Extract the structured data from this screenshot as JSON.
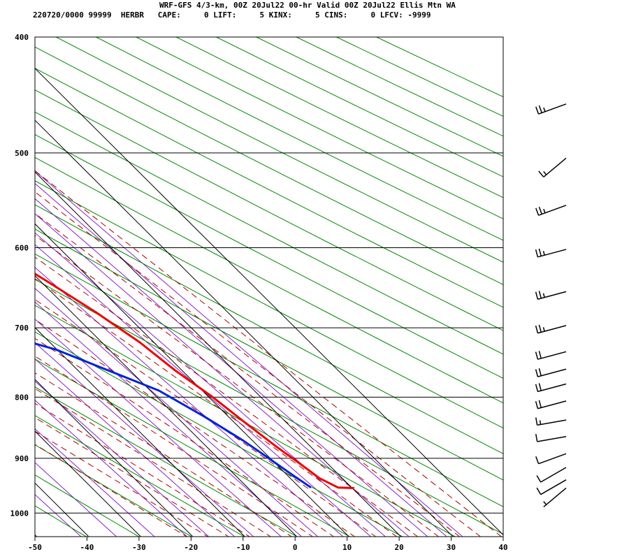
{
  "header": {
    "title": "WRF-GFS 4/3-km, 00Z 20Jul22 00-hr Valid 00Z 20Jul22 Ellis Mtn WA",
    "stats": "220720/0000 99999  HERBR   CAPE:     0 LIFT:     5 KINX:     5 CINS:     0 LFCV: -9999"
  },
  "chart_data": {
    "type": "skew-t log-p sounding",
    "x_axis": {
      "label": "",
      "units": "°C",
      "range": [
        -50,
        40
      ],
      "ticks": [
        -50,
        -40,
        -30,
        -20,
        -10,
        0,
        10,
        20,
        30,
        40
      ]
    },
    "y_axis": {
      "label": "",
      "units": "hPa",
      "scale": "log",
      "range": [
        400,
        1050
      ],
      "ticks": [
        400,
        500,
        600,
        700,
        800,
        900,
        1000
      ]
    },
    "series": [
      {
        "role": "temperature",
        "color": "#ee0000",
        "points": [
          {
            "p": 455,
            "t": -16.0
          },
          {
            "p": 480,
            "t": -13.2
          },
          {
            "p": 500,
            "t": -10.8
          },
          {
            "p": 520,
            "t": -9.3
          },
          {
            "p": 560,
            "t": -5.9
          },
          {
            "p": 600,
            "t": -2.6
          },
          {
            "p": 640,
            "t": 1.4
          },
          {
            "p": 680,
            "t": 4.9
          },
          {
            "p": 720,
            "t": 7.5
          },
          {
            "p": 760,
            "t": 8.9
          },
          {
            "p": 800,
            "t": 11.0
          },
          {
            "p": 840,
            "t": 12.3
          },
          {
            "p": 880,
            "t": 13.7
          },
          {
            "p": 910,
            "t": 15.0
          },
          {
            "p": 935,
            "t": 15.9
          },
          {
            "p": 952,
            "t": 17.7
          },
          {
            "p": 953,
            "t": 20.7
          }
        ]
      },
      {
        "role": "dewpoint",
        "color": "#0022dd",
        "points": [
          {
            "p": 455,
            "t": -43.6
          },
          {
            "p": 510,
            "t": -40.1
          },
          {
            "p": 560,
            "t": -41.6
          },
          {
            "p": 608,
            "t": -42.1
          },
          {
            "p": 660,
            "t": -34.5
          },
          {
            "p": 700,
            "t": -20.5
          },
          {
            "p": 730,
            "t": -10.0
          },
          {
            "p": 790,
            "t": 1.9
          },
          {
            "p": 830,
            "t": 5.6
          },
          {
            "p": 870,
            "t": 8.5
          },
          {
            "p": 900,
            "t": 10.0
          },
          {
            "p": 930,
            "t": 11.4
          },
          {
            "p": 952,
            "t": 12.5
          }
        ]
      }
    ],
    "background": {
      "isotherm_spacing": 10,
      "dry_adiabat_color": "#008800",
      "moist_adiabat_color": "#aa0000",
      "mixing_ratio_color": "#8822cc"
    },
    "wind_barbs": [
      {
        "p": 455,
        "speed_kt": 25,
        "dir": 250
      },
      {
        "p": 505,
        "speed_kt": 15,
        "dir": 230
      },
      {
        "p": 553,
        "speed_kt": 25,
        "dir": 250
      },
      {
        "p": 602,
        "speed_kt": 25,
        "dir": 255
      },
      {
        "p": 653,
        "speed_kt": 25,
        "dir": 255
      },
      {
        "p": 697,
        "speed_kt": 25,
        "dir": 255
      },
      {
        "p": 733,
        "speed_kt": 20,
        "dir": 255
      },
      {
        "p": 758,
        "speed_kt": 20,
        "dir": 255
      },
      {
        "p": 780,
        "speed_kt": 20,
        "dir": 255
      },
      {
        "p": 806,
        "speed_kt": 20,
        "dir": 255
      },
      {
        "p": 836,
        "speed_kt": 15,
        "dir": 260
      },
      {
        "p": 863,
        "speed_kt": 10,
        "dir": 260
      },
      {
        "p": 892,
        "speed_kt": 10,
        "dir": 250
      },
      {
        "p": 916,
        "speed_kt": 10,
        "dir": 240
      },
      {
        "p": 938,
        "speed_kt": 10,
        "dir": 240
      },
      {
        "p": 953,
        "speed_kt": 5,
        "dir": 230
      }
    ]
  }
}
